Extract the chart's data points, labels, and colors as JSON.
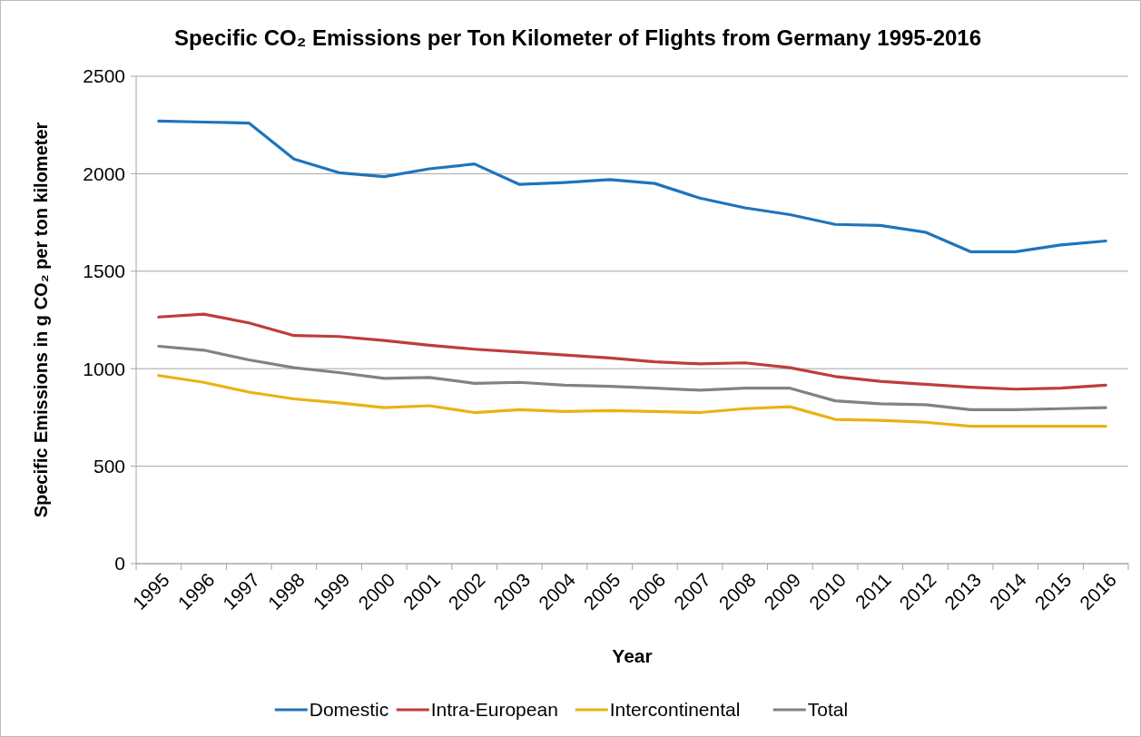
{
  "chart_data": {
    "type": "line",
    "title": "Specific CO₂ Emissions per Ton Kilometer of Flights from Germany 1995-2016",
    "xlabel": "Year",
    "ylabel": "Specific Emissions in g CO₂ per ton kilometer",
    "categories": [
      "1995",
      "1996",
      "1997",
      "1998",
      "1999",
      "2000",
      "2001",
      "2002",
      "2003",
      "2004",
      "2005",
      "2006",
      "2007",
      "2008",
      "2009",
      "2010",
      "2011",
      "2012",
      "2013",
      "2014",
      "2015",
      "2016"
    ],
    "series": [
      {
        "name": "Domestic",
        "color": "#1f74bb",
        "values": [
          2270,
          2265,
          2260,
          2075,
          2005,
          1985,
          2025,
          2050,
          1945,
          1955,
          1970,
          1950,
          1875,
          1825,
          1790,
          1740,
          1735,
          1700,
          1600,
          1600,
          1635,
          1655
        ]
      },
      {
        "name": "Intra-European",
        "color": "#be3d3a",
        "values": [
          1265,
          1280,
          1235,
          1170,
          1165,
          1145,
          1120,
          1100,
          1085,
          1070,
          1055,
          1035,
          1025,
          1030,
          1005,
          960,
          935,
          920,
          905,
          895,
          900,
          915
        ]
      },
      {
        "name": "Intercontinental",
        "color": "#e9b311",
        "values": [
          965,
          930,
          880,
          845,
          825,
          800,
          810,
          775,
          790,
          780,
          785,
          780,
          775,
          795,
          805,
          740,
          735,
          725,
          705,
          705,
          705,
          705
        ]
      },
      {
        "name": "Total",
        "color": "#828282",
        "values": [
          1115,
          1095,
          1045,
          1005,
          980,
          950,
          955,
          925,
          930,
          915,
          910,
          900,
          890,
          900,
          900,
          835,
          820,
          815,
          790,
          790,
          795,
          800
        ]
      }
    ],
    "ylim": [
      0,
      2500
    ],
    "yticks": [
      0,
      500,
      1000,
      1500,
      2000,
      2500
    ],
    "grid": "y",
    "legend": "bottom",
    "line_style": "solid"
  }
}
